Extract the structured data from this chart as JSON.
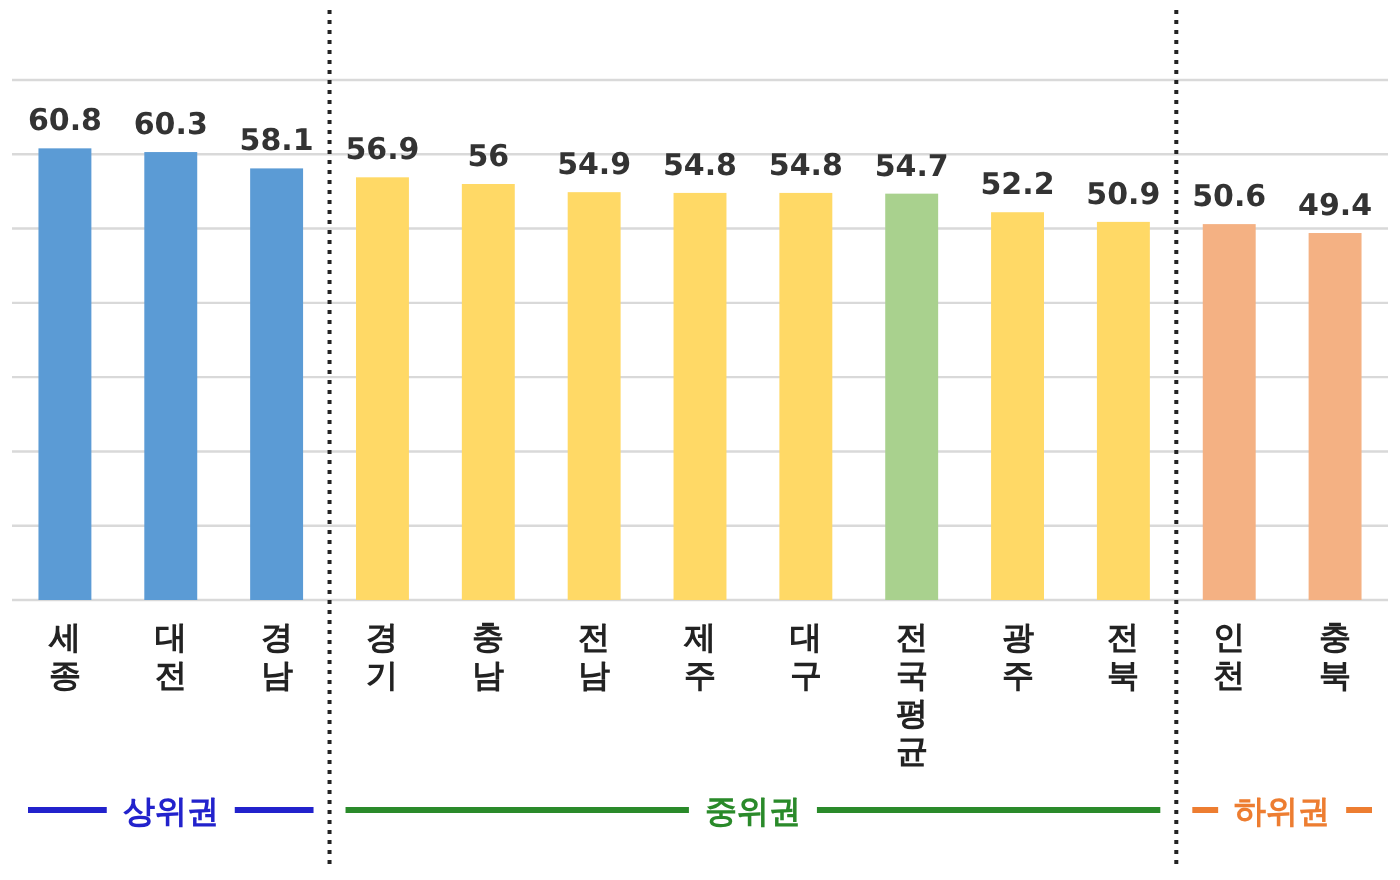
{
  "chart_data": {
    "type": "bar",
    "categories": [
      "세종",
      "대전",
      "경남",
      "경기",
      "충남",
      "전남",
      "제주",
      "대구",
      "전국 평균",
      "광주",
      "전북",
      "인천",
      "충북"
    ],
    "values": [
      60.8,
      60.3,
      58.1,
      56.9,
      56,
      54.9,
      54.8,
      54.8,
      54.7,
      52.2,
      50.9,
      50.6,
      49.4
    ],
    "colors": [
      "#5b9bd5",
      "#5b9bd5",
      "#5b9bd5",
      "#ffd966",
      "#ffd966",
      "#ffd966",
      "#ffd966",
      "#ffd966",
      "#a9d18e",
      "#ffd966",
      "#ffd966",
      "#f4b183",
      "#f4b183"
    ],
    "data_labels": true,
    "ylim": [
      0,
      70
    ],
    "yticks": [
      {
        "value": 0,
        "label": null
      },
      {
        "value": 10,
        "label": null
      },
      {
        "value": 20,
        "label": null
      },
      {
        "value": 30,
        "label": null
      },
      {
        "value": 40,
        "label": null
      },
      {
        "value": 50,
        "label": null
      },
      {
        "value": 60,
        "label": null
      },
      {
        "value": 70,
        "label": null
      }
    ],
    "tick_labels": "x",
    "grid": "y",
    "annotations": [
      "상위권",
      "중위권",
      "하위권"
    ]
  }
}
